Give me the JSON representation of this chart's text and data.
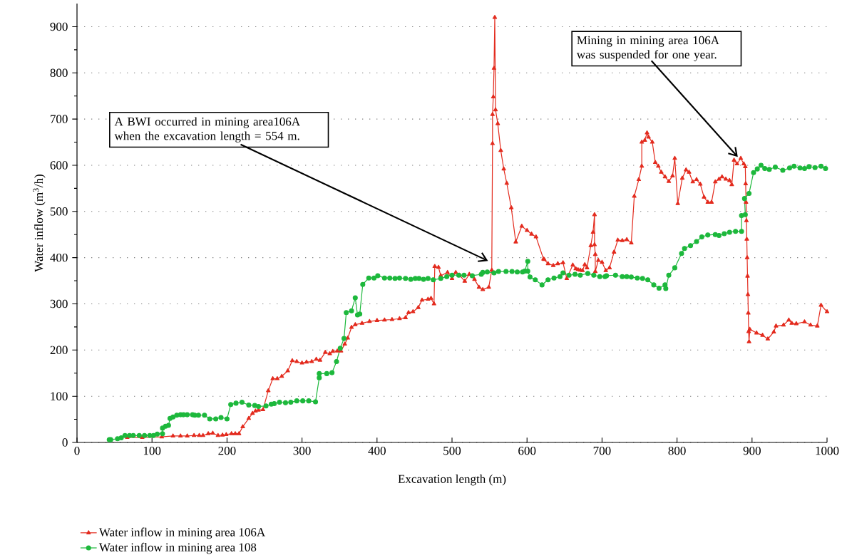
{
  "chart_data": {
    "type": "line",
    "xlabel": "Excavation length (m)",
    "ylabel": "Water inflow (m$^{3}$/h)",
    "xlim": [
      0,
      1000
    ],
    "xticks": [
      0,
      100,
      200,
      300,
      400,
      500,
      600,
      700,
      800,
      900,
      1000
    ],
    "ylim": [
      0,
      950
    ],
    "yticks": [
      0,
      100,
      200,
      300,
      400,
      500,
      600,
      700,
      800,
      900
    ],
    "grid": "y",
    "legend": "bottom",
    "annotations": [
      {
        "text": "A BWI occurred in mining area106A when the excavation length = 554 m.",
        "x": 548,
        "y": 393
      },
      {
        "text": "Mining in mining area 106A was suspended for one year.",
        "x": 881,
        "y": 618
      }
    ],
    "series": [
      {
        "name": "Water inflow in mining area 106A",
        "color": "#e32b1e",
        "marker": "triangle",
        "x": [
          67,
          87,
          113,
          128,
          138,
          147,
          156,
          163,
          168,
          175,
          181,
          188,
          194,
          199,
          206,
          211,
          216,
          221,
          229,
          234,
          238,
          242,
          248,
          255,
          261,
          267,
          273,
          281,
          287,
          293,
          300,
          306,
          313,
          319,
          324,
          331,
          337,
          341,
          347,
          352,
          357,
          361,
          366,
          371,
          380,
          390,
          400,
          410,
          420,
          430,
          438,
          442,
          448,
          455,
          460,
          468,
          472,
          476,
          477,
          482,
          485,
          494,
          500,
          505,
          510,
          517,
          523,
          530,
          536,
          541,
          549,
          553,
          554,
          554,
          555,
          556,
          557,
          558,
          561,
          565,
          569,
          573,
          579,
          585,
          593,
          600,
          606,
          612,
          622,
          623,
          628,
          635,
          641,
          648,
          653,
          661,
          665,
          668,
          671,
          674,
          677,
          680,
          685,
          688,
          690,
          690,
          691,
          691,
          695,
          700,
          705,
          710,
          716,
          721,
          727,
          733,
          739,
          743,
          749,
          753,
          753,
          757,
          760,
          762,
          767,
          771,
          775,
          779,
          784,
          789,
          794,
          797,
          801,
          807,
          812,
          816,
          821,
          826,
          831,
          836,
          841,
          846,
          851,
          856,
          860,
          865,
          870,
          873,
          876,
          880,
          885,
          889,
          891,
          891.5,
          892,
          892.5,
          893,
          893.5,
          894,
          894.5,
          895,
          895.5,
          896,
          897,
          906,
          914,
          921,
          929,
          932,
          942,
          949,
          953,
          959,
          970,
          978,
          987,
          992,
          1000
        ],
        "values": [
          11,
          11,
          12,
          14,
          14,
          14,
          15,
          15,
          15,
          19,
          20,
          15,
          16,
          17,
          19,
          19,
          19,
          34,
          52,
          63,
          68,
          70,
          71,
          112,
          138,
          138,
          143,
          155,
          177,
          175,
          172,
          174,
          175,
          180,
          178,
          195,
          192,
          197,
          198,
          198,
          213,
          226,
          249,
          255,
          258,
          262,
          264,
          265,
          266,
          268,
          270,
          281,
          283,
          292,
          308,
          310,
          312,
          300,
          381,
          379,
          361,
          368,
          355,
          368,
          362,
          349,
          364,
          353,
          336,
          331,
          336,
          373,
          647,
          710,
          748,
          810,
          920,
          720,
          690,
          632,
          592,
          561,
          508,
          434,
          468,
          459,
          451,
          445,
          397,
          396,
          387,
          383,
          387,
          389,
          355,
          384,
          376,
          374,
          373,
          372,
          385,
          378,
          426,
          455,
          493,
          428,
          407,
          370,
          394,
          390,
          372,
          378,
          412,
          438,
          437,
          439,
          432,
          533,
          569,
          598,
          650,
          654,
          670,
          661,
          650,
          606,
          598,
          585,
          575,
          565,
          577,
          615,
          517,
          572,
          590,
          585,
          564,
          569,
          559,
          531,
          520,
          520,
          564,
          570,
          575,
          570,
          567,
          558,
          611,
          603,
          615,
          603,
          597,
          560,
          520,
          480,
          440,
          400,
          360,
          320,
          280,
          240,
          218,
          245,
          237,
          232,
          224,
          239,
          252,
          254,
          265,
          258,
          257,
          261,
          254,
          252,
          297,
          283
        ]
      },
      {
        "name": "Water inflow in mining area 108",
        "color": "#1db83c",
        "marker": "circle",
        "x": [
          43,
          45,
          54,
          59,
          64,
          70,
          75,
          83,
          90,
          97,
          102,
          107,
          114,
          114,
          118,
          122,
          124,
          128,
          133,
          138,
          142,
          147,
          154,
          157,
          162,
          170,
          177,
          185,
          192,
          200,
          205,
          212,
          220,
          229,
          237,
          242,
          252,
          259,
          263,
          270,
          278,
          285,
          293,
          301,
          309,
          318,
          323,
          323,
          333,
          340,
          346,
          351,
          356,
          359,
          366,
          371,
          374,
          377,
          381,
          389,
          396,
          401,
          410,
          417,
          424,
          430,
          438,
          445,
          451,
          456,
          462,
          468,
          475,
          485,
          493,
          500,
          509,
          516,
          527,
          539,
          541,
          547,
          556,
          562,
          572,
          580,
          587,
          594,
          597,
          601,
          601,
          604,
          611,
          620,
          628,
          636,
          644,
          648,
          656,
          664,
          671,
          681,
          689,
          697,
          704,
          706,
          718,
          727,
          733,
          739,
          747,
          754,
          761,
          769,
          776,
          784,
          785,
          789,
          797,
          806,
          810,
          818,
          826,
          833,
          841,
          851,
          856,
          863,
          870,
          878,
          886,
          886,
          891,
          890,
          896,
          902,
          907,
          912,
          917,
          923,
          931,
          941,
          950,
          956,
          964,
          970,
          976,
          984,
          992,
          998
        ],
        "values": [
          6,
          6,
          8,
          10,
          15,
          15,
          15,
          15,
          15,
          15,
          15,
          18,
          19,
          31,
          35,
          37,
          52,
          55,
          59,
          60,
          60,
          60,
          60,
          59,
          59,
          59,
          51,
          51,
          54,
          51,
          82,
          85,
          87,
          81,
          80,
          78,
          79,
          83,
          84,
          87,
          86,
          87,
          90,
          90,
          90,
          88,
          140,
          149,
          149,
          151,
          175,
          204,
          225,
          281,
          285,
          313,
          276,
          278,
          342,
          356,
          356,
          361,
          356,
          356,
          355,
          356,
          355,
          353,
          355,
          355,
          353,
          355,
          352,
          355,
          359,
          362,
          362,
          362,
          361,
          364,
          368,
          369,
          367,
          370,
          370,
          370,
          369,
          369,
          371,
          392,
          371,
          358,
          352,
          341,
          352,
          356,
          359,
          367,
          362,
          364,
          362,
          366,
          362,
          359,
          359,
          361,
          362,
          359,
          359,
          358,
          356,
          355,
          352,
          341,
          334,
          341,
          333,
          362,
          378,
          409,
          420,
          426,
          435,
          445,
          449,
          450,
          448,
          452,
          455,
          457,
          457,
          491,
          493,
          528,
          539,
          584,
          592,
          600,
          593,
          591,
          596,
          589,
          594,
          598,
          594,
          593,
          597,
          595,
          598,
          593
        ]
      }
    ]
  }
}
